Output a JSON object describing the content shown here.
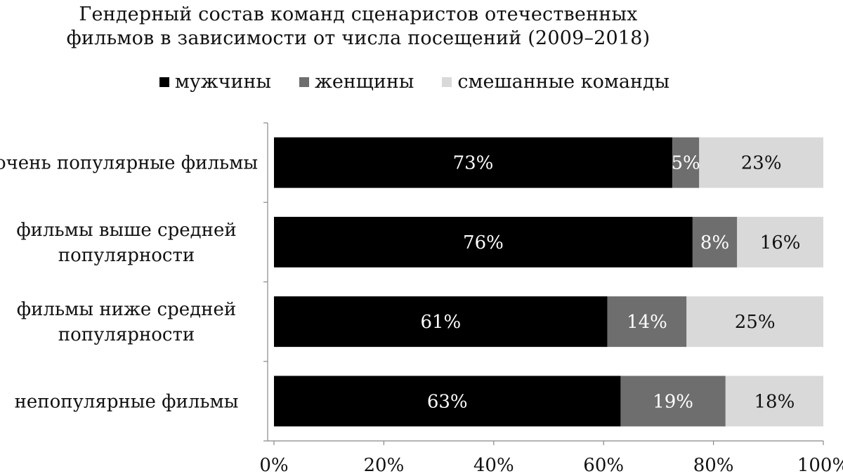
{
  "chart_data": {
    "type": "bar",
    "orientation": "horizontal",
    "stacked": true,
    "title_lines": [
      "Гендерный состав команд сценаристов отечественных",
      "фильмов в зависимости от числа посещений (2009–2018)"
    ],
    "categories": [
      [
        "очень популярные фильмы"
      ],
      [
        "фильмы выше средней",
        "популярности"
      ],
      [
        "фильмы ниже средней",
        "популярности"
      ],
      [
        "непопулярные фильмы"
      ]
    ],
    "series": [
      {
        "name": "мужчины",
        "color": "#000000",
        "label_color": "#ffffff",
        "values": [
          72.5,
          76.2,
          60.7,
          63.1
        ],
        "labels": [
          "73%",
          "76%",
          "61%",
          "63%"
        ]
      },
      {
        "name": "женщины",
        "color": "#6e6e6e",
        "label_color": "#ffffff",
        "values": [
          4.9,
          8.1,
          14.4,
          19.1
        ],
        "labels": [
          "5%",
          "8%",
          "14%",
          "19%"
        ]
      },
      {
        "name": "смешанные команды",
        "color": "#d9d9d9",
        "label_color": "#111111",
        "values": [
          22.6,
          15.7,
          24.9,
          17.8
        ],
        "labels": [
          "23%",
          "16%",
          "25%",
          "18%"
        ]
      }
    ],
    "xlim": [
      0,
      100
    ],
    "x_ticks": [
      0,
      20,
      40,
      60,
      80,
      100
    ],
    "x_tick_labels": [
      "0%",
      "20%",
      "40%",
      "60%",
      "80%",
      "100%"
    ],
    "legend_position": "top",
    "grid": false
  }
}
